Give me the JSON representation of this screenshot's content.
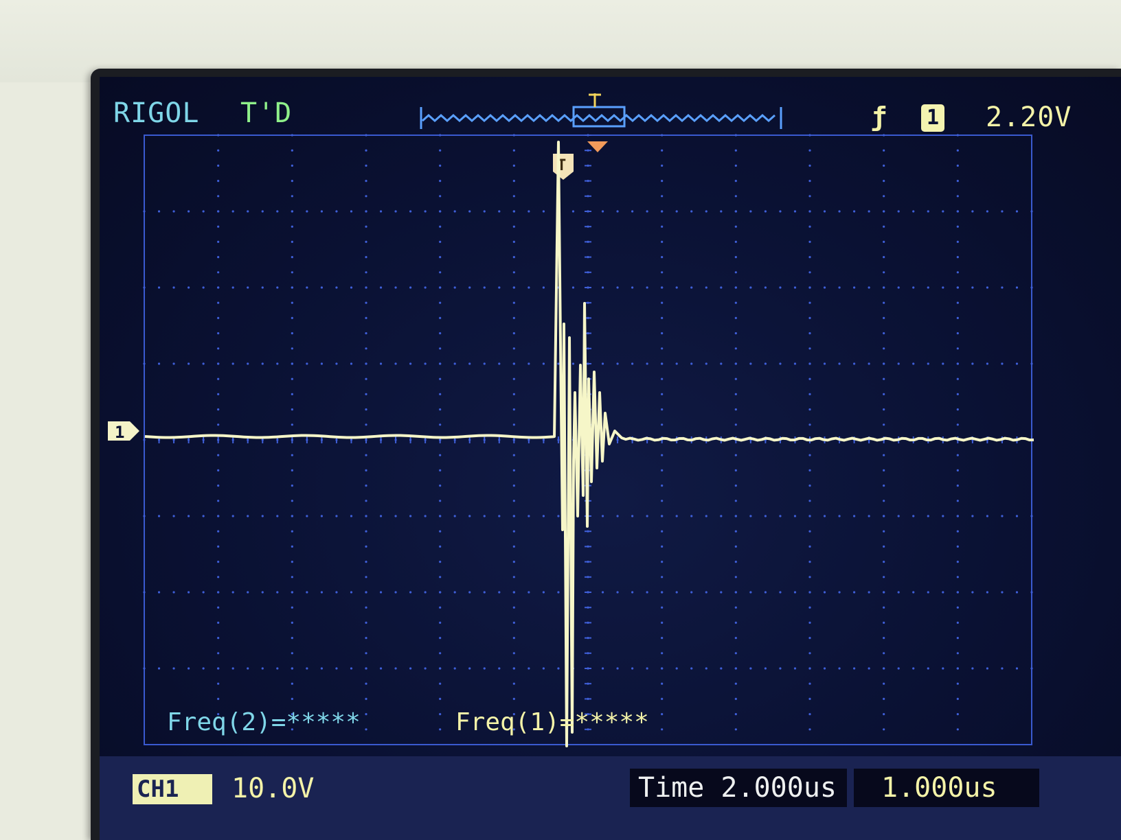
{
  "header": {
    "brand": "RIGOL",
    "status": "T'D",
    "trigger_slope_icon": "rising-edge-icon",
    "trigger_source": "1",
    "trigger_level": "2.20V"
  },
  "waveform": {
    "channel_marker": "1",
    "trigger_marker": "T",
    "colors": {
      "trace": "#f6f6c8",
      "grid": "#3f5fd8",
      "meas_ch2": "#7fd6e8",
      "meas_ch1": "#f4f3a8"
    }
  },
  "measurements": {
    "freq2": "Freq(2)=*****",
    "freq1": "Freq(1)=*****"
  },
  "footer": {
    "channel_label": "CH1",
    "channel_scale": "10.0V",
    "timebase": "Time 2.000us",
    "trigger_delay": "1.000us"
  }
}
